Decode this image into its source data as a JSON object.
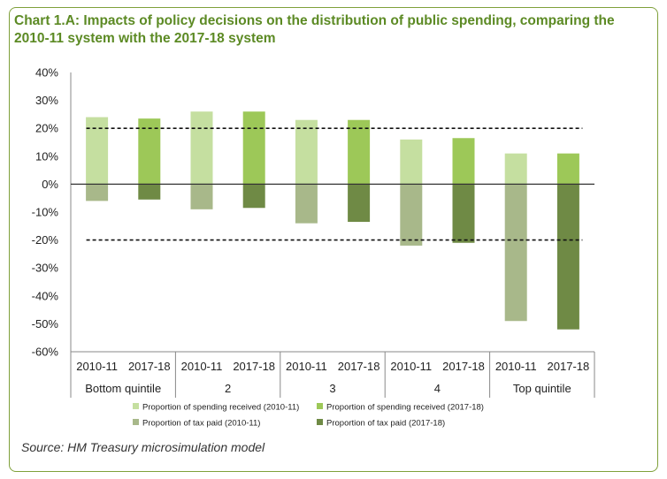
{
  "title": "Chart 1.A: Impacts of policy decisions on the distribution of public spending, comparing the 2010-11 system with the 2017-18 system",
  "source": "Source: HM Treasury microsimulation model",
  "chart_data": {
    "type": "bar",
    "title": "Chart 1.A: Impacts of policy decisions on the distribution of public spending, comparing the 2010-11 system with the 2017-18 system",
    "ylim": [
      -60,
      40
    ],
    "ytick_labels": [
      "40%",
      "30%",
      "20%",
      "10%",
      "0%",
      "-10%",
      "-20%",
      "-30%",
      "-40%",
      "-50%",
      "-60%"
    ],
    "yticks": [
      40,
      30,
      20,
      10,
      0,
      -10,
      -20,
      -30,
      -40,
      -50,
      -60
    ],
    "groups": [
      "Bottom quintile",
      "2",
      "3",
      "4",
      "Top quintile"
    ],
    "systems": [
      "2010-11",
      "2017-18"
    ],
    "series": [
      {
        "name": "Proportion of spending received (2010-11)",
        "color": "#c5dfa0",
        "group_values": [
          24,
          26,
          23,
          16,
          11
        ],
        "system": "2010-11"
      },
      {
        "name": "Proportion of spending received (2017-18)",
        "color": "#9dc858",
        "group_values": [
          23.5,
          26,
          23,
          16.5,
          11
        ],
        "system": "2017-18"
      },
      {
        "name": "Proportion of tax paid (2010-11)",
        "color": "#a8b88a",
        "group_values": [
          -6,
          -9,
          -14,
          -22,
          -49
        ],
        "system": "2010-11"
      },
      {
        "name": "Proportion of tax paid (2017-18)",
        "color": "#6f8a45",
        "group_values": [
          -5.5,
          -8.5,
          -13.5,
          -21,
          -52
        ],
        "system": "2017-18"
      }
    ],
    "reference_lines": [
      20,
      -20
    ],
    "grid": false,
    "legend_position": "bottom"
  }
}
